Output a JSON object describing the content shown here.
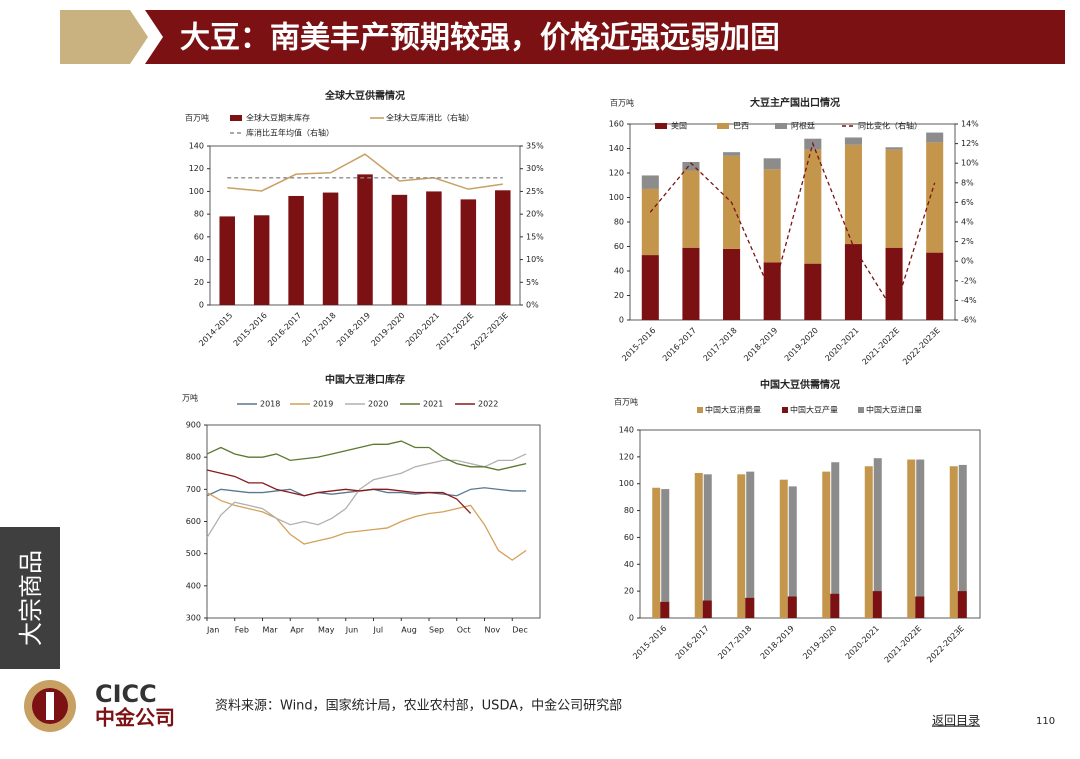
{
  "header": {
    "title": "大豆：南美丰产预期较强，价格近强远弱加固"
  },
  "sidebar": {
    "label": "大宗商品"
  },
  "logo": {
    "en": "CICC",
    "cn": "中金公司"
  },
  "footer": {
    "source": "资料来源：Wind，国家统计局，农业农村部，USDA，中金公司研究部",
    "back": "返回目录",
    "page": "110"
  },
  "chart_data": [
    {
      "type": "bar",
      "title": "全球大豆供需情况",
      "y_label": "百万吨",
      "categories": [
        "2014-2015",
        "2015-2016",
        "2016-2017",
        "2017-2018",
        "2018-2019",
        "2019-2020",
        "2020-2021",
        "2021-2022E",
        "2022-2023E"
      ],
      "series": [
        {
          "name": "全球大豆期末库存",
          "type": "bar",
          "color": "#7b1113",
          "values": [
            78,
            79,
            96,
            99,
            115,
            97,
            100,
            93,
            101
          ]
        },
        {
          "name": "全球大豆库消比（右轴）",
          "type": "line",
          "axis": "y2",
          "color": "#c9a063",
          "values": [
            25.8,
            25.1,
            28.8,
            29.1,
            33.2,
            27.3,
            28.0,
            25.5,
            26.6
          ]
        },
        {
          "name": "库消比五年均值（右轴）",
          "type": "line",
          "axis": "y2",
          "dash": true,
          "color": "#8c8c8c",
          "values": [
            28,
            28,
            28,
            28,
            28,
            28,
            28,
            28,
            28
          ]
        }
      ],
      "ylim": [
        0,
        140
      ],
      "yticks": [
        0,
        20,
        40,
        60,
        80,
        100,
        120,
        140
      ],
      "y2lim": [
        0,
        35
      ],
      "y2ticks": [
        {
          "value": 0,
          "label": "0%"
        },
        {
          "value": 5,
          "label": "5%"
        },
        {
          "value": 10,
          "label": "10%"
        },
        {
          "value": 15,
          "label": "15%"
        },
        {
          "value": 20,
          "label": "20%"
        },
        {
          "value": 25,
          "label": "25%"
        },
        {
          "value": 30,
          "label": "30%"
        },
        {
          "value": 35,
          "label": "35%"
        }
      ]
    },
    {
      "type": "bar",
      "title": "大豆主产国出口情况",
      "y_label": "百万吨",
      "stacked": true,
      "categories": [
        "2015-2016",
        "2016-2017",
        "2017-2018",
        "2018-2019",
        "2019-2020",
        "2020-2021",
        "2021-2022E",
        "2022-2023E"
      ],
      "series": [
        {
          "name": "美国",
          "type": "bar",
          "color": "#7b1113",
          "values": [
            53,
            59,
            58,
            47,
            46,
            62,
            59,
            55
          ]
        },
        {
          "name": "巴西",
          "type": "bar",
          "color": "#c4964c",
          "values": [
            54,
            63,
            76,
            76,
            93,
            81,
            80,
            90
          ]
        },
        {
          "name": "阿根廷",
          "type": "bar",
          "color": "#8c8c8c",
          "values": [
            11,
            7,
            3,
            9,
            9,
            6,
            2,
            8
          ]
        },
        {
          "name": "同比变化（右轴）",
          "type": "line",
          "axis": "y2",
          "dash": true,
          "color": "#7b1113",
          "values": [
            5.0,
            10.0,
            6.0,
            -3.5,
            12.0,
            1.5,
            -5.2,
            8.0
          ]
        }
      ],
      "ylim": [
        0,
        160
      ],
      "yticks": [
        0,
        20,
        40,
        60,
        80,
        100,
        120,
        140,
        160
      ],
      "y2lim": [
        -6,
        14
      ],
      "y2ticks": [
        {
          "value": -6,
          "label": "-6%"
        },
        {
          "value": -4,
          "label": "-4%"
        },
        {
          "value": -2,
          "label": "-2%"
        },
        {
          "value": 0,
          "label": "0%"
        },
        {
          "value": 2,
          "label": "2%"
        },
        {
          "value": 4,
          "label": "4%"
        },
        {
          "value": 6,
          "label": "6%"
        },
        {
          "value": 8,
          "label": "8%"
        },
        {
          "value": 10,
          "label": "10%"
        },
        {
          "value": 12,
          "label": "12%"
        },
        {
          "value": 14,
          "label": "14%"
        }
      ]
    },
    {
      "type": "line",
      "title": "中国大豆港口库存",
      "y_label": "万吨",
      "x": [
        0,
        0.5,
        1,
        1.5,
        2,
        2.5,
        3,
        3.5,
        4,
        4.5,
        5,
        5.5,
        6,
        6.5,
        7,
        7.5,
        8,
        8.5,
        9,
        9.5,
        10,
        10.5,
        11,
        11.5
      ],
      "xlim": [
        0,
        12
      ],
      "xticks": [
        {
          "value": 0,
          "label": "Jan"
        },
        {
          "value": 1,
          "label": "Feb"
        },
        {
          "value": 2,
          "label": "Mar"
        },
        {
          "value": 3,
          "label": "Apr"
        },
        {
          "value": 4,
          "label": "May"
        },
        {
          "value": 5,
          "label": "Jun"
        },
        {
          "value": 6,
          "label": "Jul"
        },
        {
          "value": 7,
          "label": "Aug"
        },
        {
          "value": 8,
          "label": "Sep"
        },
        {
          "value": 9,
          "label": "Oct"
        },
        {
          "value": 10,
          "label": "Nov"
        },
        {
          "value": 11,
          "label": "Dec"
        }
      ],
      "series": [
        {
          "name": "2018",
          "color": "#5b7790",
          "values": [
            680,
            700,
            695,
            690,
            690,
            695,
            700,
            680,
            690,
            685,
            690,
            695,
            700,
            690,
            690,
            685,
            690,
            685,
            680,
            700,
            705,
            700,
            695,
            695
          ]
        },
        {
          "name": "2019",
          "color": "#d4a15a",
          "values": [
            690,
            665,
            650,
            640,
            630,
            610,
            560,
            530,
            540,
            550,
            565,
            570,
            575,
            580,
            600,
            615,
            625,
            630,
            640,
            650,
            590,
            510,
            480,
            510
          ]
        },
        {
          "name": "2020",
          "color": "#b0b0b0",
          "values": [
            550,
            620,
            660,
            650,
            640,
            610,
            590,
            600,
            590,
            610,
            640,
            700,
            730,
            740,
            750,
            770,
            780,
            790,
            790,
            780,
            770,
            790,
            790,
            810
          ]
        },
        {
          "name": "2021",
          "color": "#5a7a2e",
          "values": [
            810,
            830,
            810,
            800,
            800,
            810,
            790,
            795,
            800,
            810,
            820,
            830,
            840,
            840,
            850,
            830,
            830,
            800,
            780,
            770,
            770,
            760,
            770,
            780
          ]
        },
        {
          "name": "2022",
          "color": "#8b1a1a",
          "values": [
            760,
            750,
            740,
            720,
            720,
            700,
            690,
            680,
            690,
            695,
            700,
            695,
            700,
            700,
            695,
            690,
            690,
            690,
            670,
            625,
            null,
            null,
            null,
            null
          ]
        }
      ],
      "ylim": [
        300,
        900
      ],
      "yticks": [
        300,
        400,
        500,
        600,
        700,
        800,
        900
      ]
    },
    {
      "type": "bar",
      "title": "中国大豆供需情况",
      "y_label": "百万吨",
      "categories": [
        "2015-2016",
        "2016-2017",
        "2017-2018",
        "2018-2019",
        "2019-2020",
        "2020-2021",
        "2021-2022E",
        "2022-2023E"
      ],
      "series": [
        {
          "name": "中国大豆消费量",
          "type": "bar",
          "color": "#c4964c",
          "values": [
            97,
            108,
            107,
            103,
            109,
            113,
            118,
            113
          ]
        },
        {
          "name": "中国大豆产量",
          "type": "bar",
          "color": "#7b1113",
          "values": [
            12,
            13,
            15,
            16,
            18,
            20,
            16,
            20
          ]
        },
        {
          "name": "中国大豆进口量",
          "type": "bar",
          "color": "#8c8c8c",
          "values": [
            96,
            107,
            109,
            98,
            116,
            119,
            118,
            114
          ]
        }
      ],
      "ylim": [
        0,
        140
      ],
      "yticks": [
        0,
        20,
        40,
        60,
        80,
        100,
        120,
        140
      ]
    }
  ]
}
